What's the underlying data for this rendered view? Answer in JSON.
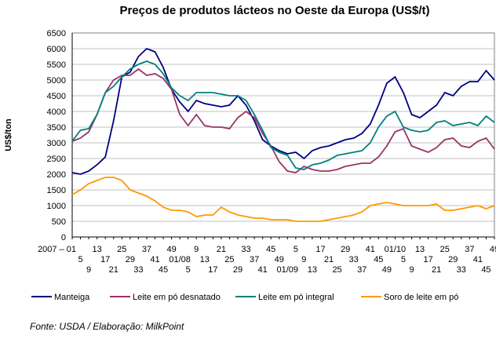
{
  "chart_data": {
    "type": "line",
    "title": "Preços de produtos lácteos no Oeste da Europa (US$/t)",
    "ylabel": "US$/ton",
    "xlabel": "",
    "ylim": [
      0,
      6500
    ],
    "yticks": [
      0,
      500,
      1000,
      1500,
      2000,
      2500,
      3000,
      3500,
      4000,
      4500,
      5000,
      5500,
      6000,
      6500
    ],
    "grid": true,
    "legend": "bottom",
    "categories": [
      "2007 – 01",
      "5",
      "9",
      "13",
      "17",
      "21",
      "25",
      "29",
      "33",
      "37",
      "41",
      "45",
      "49",
      "01/08",
      "5",
      "9",
      "13",
      "17",
      "21",
      "25",
      "29",
      "33",
      "37",
      "41",
      "45",
      "49",
      "01/09",
      "5",
      "9",
      "13",
      "17",
      "21",
      "25",
      "29",
      "33",
      "37",
      "41",
      "45",
      "49",
      "01/10",
      "5",
      "9",
      "13",
      "17",
      "21",
      "25",
      "29",
      "33",
      "37",
      "41",
      "45",
      "49"
    ],
    "series": [
      {
        "name": "Manteiga",
        "color": "#000080",
        "values": [
          2050,
          2000,
          2100,
          2300,
          2550,
          3700,
          5100,
          5250,
          5750,
          6000,
          5900,
          5400,
          4700,
          4300,
          4000,
          4350,
          4250,
          4200,
          4150,
          4200,
          4500,
          4200,
          3700,
          3100,
          2900,
          2750,
          2650,
          2700,
          2500,
          2750,
          2850,
          2900,
          3000,
          3100,
          3150,
          3300,
          3600,
          4200,
          4900,
          5100,
          4600,
          3900,
          3800,
          4000,
          4200,
          4600,
          4500,
          4800,
          4950,
          4950,
          5300,
          5000
        ]
      },
      {
        "name": "Leite em pó desnatado",
        "color": "#993366",
        "values": [
          3050,
          3150,
          3350,
          3900,
          4600,
          5000,
          5150,
          5150,
          5350,
          5150,
          5200,
          5050,
          4700,
          3900,
          3550,
          3900,
          3550,
          3500,
          3500,
          3450,
          3800,
          4000,
          3800,
          3300,
          2900,
          2400,
          2100,
          2050,
          2250,
          2150,
          2100,
          2100,
          2150,
          2250,
          2300,
          2350,
          2350,
          2550,
          2900,
          3350,
          3450,
          2900,
          2800,
          2700,
          2850,
          3100,
          3150,
          2900,
          2850,
          3050,
          3150,
          2800
        ]
      },
      {
        "name": "Leite em pó integral",
        "color": "#008080",
        "values": [
          3050,
          3400,
          3450,
          3900,
          4600,
          4800,
          5100,
          5350,
          5500,
          5600,
          5500,
          5200,
          4750,
          4500,
          4350,
          4600,
          4600,
          4600,
          4550,
          4500,
          4500,
          4350,
          3900,
          3400,
          2850,
          2700,
          2600,
          2200,
          2150,
          2300,
          2350,
          2450,
          2600,
          2650,
          2700,
          2750,
          3000,
          3500,
          3850,
          4000,
          3500,
          3400,
          3350,
          3400,
          3650,
          3700,
          3550,
          3600,
          3650,
          3550,
          3850,
          3650
        ]
      },
      {
        "name": "Soro de leite em pó",
        "color": "#FF9900",
        "values": [
          1350,
          1500,
          1700,
          1800,
          1900,
          1900,
          1800,
          1500,
          1400,
          1300,
          1150,
          950,
          850,
          850,
          800,
          650,
          700,
          700,
          950,
          800,
          700,
          650,
          600,
          600,
          550,
          550,
          550,
          500,
          500,
          500,
          500,
          550,
          600,
          650,
          700,
          800,
          1000,
          1050,
          1100,
          1050,
          1000,
          1000,
          1000,
          1000,
          1050,
          850,
          850,
          900,
          950,
          1000,
          900,
          1000
        ]
      }
    ],
    "source": "Fonte: USDA / Elaboração: MilkPoint"
  }
}
